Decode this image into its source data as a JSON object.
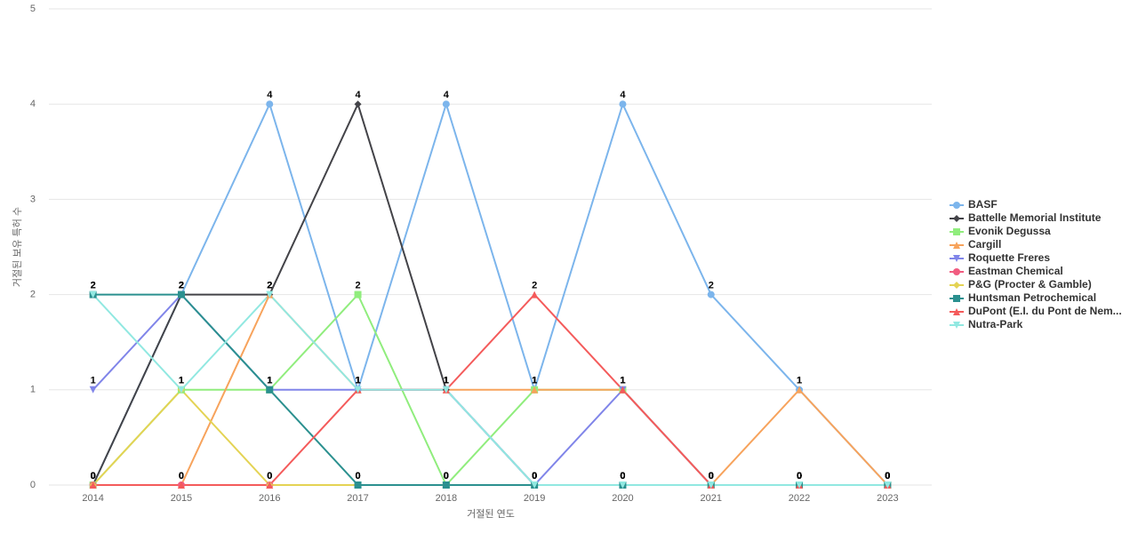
{
  "chart_data": {
    "type": "line",
    "x_label": "거절된 연도",
    "y_label": "거절된 보유 특허 수",
    "categories": [
      "2014",
      "2015",
      "2016",
      "2017",
      "2018",
      "2019",
      "2020",
      "2021",
      "2022",
      "2023"
    ],
    "ylim": [
      0,
      5
    ],
    "yticks": [
      0,
      1,
      2,
      3,
      4,
      5
    ],
    "grid": true,
    "legend": "right",
    "series": [
      {
        "name": "BASF",
        "color": "#7cb5ec",
        "marker": "circle",
        "values": [
          0,
          2,
          4,
          1,
          4,
          1,
          4,
          2,
          1,
          0
        ]
      },
      {
        "name": "Battelle Memorial Institute",
        "color": "#434348",
        "marker": "diamond",
        "values": [
          0,
          2,
          2,
          4,
          1,
          0,
          0,
          0,
          0,
          0
        ]
      },
      {
        "name": "Evonik Degussa",
        "color": "#90ed7d",
        "marker": "square",
        "values": [
          0,
          1,
          1,
          2,
          0,
          1,
          1,
          0,
          0,
          0
        ]
      },
      {
        "name": "Cargill",
        "color": "#f7a35c",
        "marker": "triangle",
        "values": [
          0,
          0,
          2,
          1,
          1,
          1,
          1,
          0,
          1,
          0
        ]
      },
      {
        "name": "Roquette Freres",
        "color": "#8085e9",
        "marker": "triangle-down",
        "values": [
          1,
          2,
          1,
          1,
          1,
          0,
          1,
          0,
          0,
          0
        ]
      },
      {
        "name": "Eastman Chemical",
        "color": "#f15c80",
        "marker": "circle",
        "values": [
          0,
          0,
          0,
          0,
          0,
          0,
          0,
          0,
          0,
          0
        ]
      },
      {
        "name": "P&G (Procter & Gamble)",
        "color": "#e4d354",
        "marker": "diamond",
        "values": [
          0,
          1,
          0,
          0,
          0,
          0,
          0,
          0,
          0,
          0
        ]
      },
      {
        "name": "Huntsman Petrochemical",
        "color": "#2b908f",
        "marker": "square",
        "values": [
          2,
          2,
          1,
          0,
          0,
          0,
          0,
          0,
          0,
          0
        ]
      },
      {
        "name": "DuPont (E.I. du Pont de Nem...",
        "color": "#f45b5b",
        "marker": "triangle",
        "values": [
          0,
          0,
          0,
          1,
          1,
          2,
          1,
          0,
          0,
          0
        ]
      },
      {
        "name": "Nutra-Park",
        "color": "#91e8e1",
        "marker": "triangle-down",
        "values": [
          2,
          1,
          2,
          1,
          1,
          0,
          0,
          0,
          0,
          0
        ]
      }
    ]
  }
}
